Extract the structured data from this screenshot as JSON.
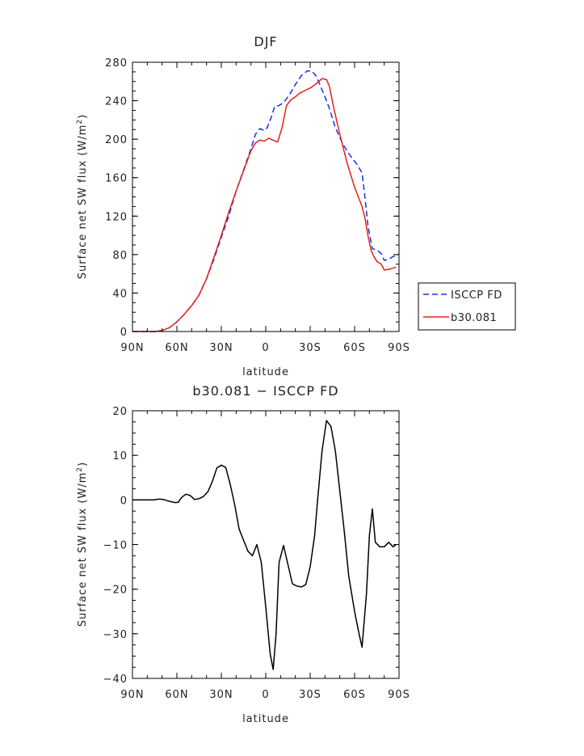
{
  "chart_data": [
    {
      "type": "line",
      "title": "DJF",
      "xlabel": "latitude",
      "ylabel": "Surface net SW flux (W/m²)",
      "ylabel_main": "Surface net SW flux (W/m",
      "ylabel_sup": "2",
      "ylabel_close": ")",
      "xlim": [
        -90,
        90
      ],
      "ylim": [
        0,
        280
      ],
      "x_ticks": [
        {
          "value": -90,
          "label": "90N"
        },
        {
          "value": -60,
          "label": "60N"
        },
        {
          "value": -30,
          "label": "30N"
        },
        {
          "value": 0,
          "label": "0"
        },
        {
          "value": 30,
          "label": "30S"
        },
        {
          "value": 60,
          "label": "60S"
        },
        {
          "value": 90,
          "label": "90S"
        }
      ],
      "y_ticks": [
        {
          "value": 0,
          "label": "0"
        },
        {
          "value": 40,
          "label": "40"
        },
        {
          "value": 80,
          "label": "80"
        },
        {
          "value": 120,
          "label": "120"
        },
        {
          "value": 160,
          "label": "160"
        },
        {
          "value": 200,
          "label": "200"
        },
        {
          "value": 240,
          "label": "240"
        },
        {
          "value": 280,
          "label": "280"
        }
      ],
      "legend_position": "outside-right",
      "series": [
        {
          "name": "ISCCP FD",
          "color": "#1a2ee6",
          "dash": "dashed",
          "points": [
            [
              -90,
              0
            ],
            [
              -80,
              0
            ],
            [
              -75,
              0
            ],
            [
              -70,
              1
            ],
            [
              -65,
              4
            ],
            [
              -60,
              10
            ],
            [
              -55,
              18
            ],
            [
              -50,
              27
            ],
            [
              -45,
              38
            ],
            [
              -40,
              55
            ],
            [
              -35,
              75
            ],
            [
              -30,
              98
            ],
            [
              -25,
              120
            ],
            [
              -20,
              146
            ],
            [
              -15,
              168
            ],
            [
              -10,
              190
            ],
            [
              -7,
              205
            ],
            [
              -4,
              211
            ],
            [
              -1,
              209
            ],
            [
              1,
              212
            ],
            [
              4,
              224
            ],
            [
              6,
              234
            ],
            [
              9,
              235
            ],
            [
              12,
              238
            ],
            [
              16,
              246
            ],
            [
              20,
              257
            ],
            [
              24,
              266
            ],
            [
              28,
              271
            ],
            [
              31,
              271
            ],
            [
              34,
              266
            ],
            [
              37,
              255
            ],
            [
              40,
              244
            ],
            [
              43,
              232
            ],
            [
              47,
              212
            ],
            [
              52,
              195
            ],
            [
              57,
              183
            ],
            [
              62,
              173
            ],
            [
              65,
              165
            ],
            [
              67,
              140
            ],
            [
              69,
              110
            ],
            [
              72,
              86
            ],
            [
              75,
              85
            ],
            [
              78,
              81
            ],
            [
              80,
              74
            ],
            [
              83,
              75
            ],
            [
              86,
              78
            ],
            [
              88,
              79
            ]
          ]
        },
        {
          "name": "b30.081",
          "color": "#e6201a",
          "dash": "solid",
          "points": [
            [
              -90,
              0
            ],
            [
              -80,
              0
            ],
            [
              -75,
              0
            ],
            [
              -70,
              1
            ],
            [
              -65,
              4
            ],
            [
              -60,
              10
            ],
            [
              -55,
              18
            ],
            [
              -50,
              27
            ],
            [
              -45,
              38
            ],
            [
              -40,
              55
            ],
            [
              -35,
              77
            ],
            [
              -30,
              100
            ],
            [
              -25,
              124
            ],
            [
              -20,
              146
            ],
            [
              -15,
              167
            ],
            [
              -10,
              188
            ],
            [
              -7,
              196
            ],
            [
              -4,
              199
            ],
            [
              -1,
              198
            ],
            [
              2,
              201
            ],
            [
              5,
              199
            ],
            [
              8,
              197
            ],
            [
              11,
              212
            ],
            [
              14,
              235
            ],
            [
              17,
              241
            ],
            [
              20,
              244
            ],
            [
              23,
              248
            ],
            [
              27,
              251
            ],
            [
              31,
              254
            ],
            [
              35,
              259
            ],
            [
              38,
              263
            ],
            [
              41,
              262
            ],
            [
              43,
              255
            ],
            [
              46,
              232
            ],
            [
              50,
              205
            ],
            [
              55,
              175
            ],
            [
              60,
              150
            ],
            [
              65,
              130
            ],
            [
              67,
              118
            ],
            [
              69,
              100
            ],
            [
              71,
              85
            ],
            [
              73,
              78
            ],
            [
              75,
              73
            ],
            [
              78,
              70
            ],
            [
              80,
              64
            ],
            [
              84,
              65
            ],
            [
              88,
              67
            ]
          ]
        }
      ]
    },
    {
      "type": "line",
      "title": "b30.081 − ISCCP FD",
      "xlabel": "latitude",
      "ylabel": "Surface net SW flux (W/m²)",
      "ylabel_main": "Surface net SW flux (W/m",
      "ylabel_sup": "2",
      "ylabel_close": ")",
      "xlim": [
        -90,
        90
      ],
      "ylim": [
        -40,
        20
      ],
      "x_ticks": [
        {
          "value": -90,
          "label": "90N"
        },
        {
          "value": -60,
          "label": "60N"
        },
        {
          "value": -30,
          "label": "30N"
        },
        {
          "value": 0,
          "label": "0"
        },
        {
          "value": 30,
          "label": "30S"
        },
        {
          "value": 60,
          "label": "60S"
        },
        {
          "value": 90,
          "label": "90S"
        }
      ],
      "y_ticks": [
        {
          "value": -40,
          "label": "−40"
        },
        {
          "value": -30,
          "label": "−30"
        },
        {
          "value": -20,
          "label": "−20"
        },
        {
          "value": -10,
          "label": "−10"
        },
        {
          "value": 0,
          "label": "0"
        },
        {
          "value": 10,
          "label": "10"
        },
        {
          "value": 20,
          "label": "20"
        }
      ],
      "series": [
        {
          "color": "#000000",
          "dash": "solid",
          "points": [
            [
              -90,
              0
            ],
            [
              -80,
              0
            ],
            [
              -76,
              0
            ],
            [
              -72,
              0.2
            ],
            [
              -69,
              0.1
            ],
            [
              -65,
              -0.3
            ],
            [
              -61,
              -0.6
            ],
            [
              -59,
              -0.5
            ],
            [
              -57,
              0.5
            ],
            [
              -54,
              1.3
            ],
            [
              -51,
              1.0
            ],
            [
              -48,
              0.1
            ],
            [
              -45,
              0.3
            ],
            [
              -42,
              0.8
            ],
            [
              -39,
              1.9
            ],
            [
              -36,
              4.2
            ],
            [
              -33,
              7.2
            ],
            [
              -30,
              7.8
            ],
            [
              -27,
              7.3
            ],
            [
              -24,
              3.5
            ],
            [
              -21,
              -1.0
            ],
            [
              -18,
              -6.5
            ],
            [
              -15,
              -9.0
            ],
            [
              -12,
              -11.5
            ],
            [
              -9,
              -12.5
            ],
            [
              -6,
              -10.0
            ],
            [
              -3,
              -14.0
            ],
            [
              0,
              -24.0
            ],
            [
              3,
              -34.5
            ],
            [
              5,
              -38.0
            ],
            [
              7,
              -30.0
            ],
            [
              9,
              -14.0
            ],
            [
              12,
              -10.2
            ],
            [
              15,
              -14.5
            ],
            [
              18,
              -18.8
            ],
            [
              21,
              -19.3
            ],
            [
              24,
              -19.5
            ],
            [
              27,
              -19.0
            ],
            [
              30,
              -15.0
            ],
            [
              33,
              -8.0
            ],
            [
              35,
              0
            ],
            [
              38,
              11.0
            ],
            [
              41,
              17.8
            ],
            [
              44,
              16.5
            ],
            [
              47,
              11.0
            ],
            [
              50,
              2.0
            ],
            [
              53,
              -7.0
            ],
            [
              56,
              -17.0
            ],
            [
              60,
              -25.0
            ],
            [
              63,
              -30.0
            ],
            [
              65,
              -33.0
            ],
            [
              68,
              -21.0
            ],
            [
              70,
              -8.0
            ],
            [
              72,
              -2.0
            ],
            [
              74,
              -9.5
            ],
            [
              77,
              -10.5
            ],
            [
              80,
              -10.5
            ],
            [
              83,
              -9.5
            ],
            [
              86,
              -10.5
            ],
            [
              88,
              -10.0
            ]
          ]
        }
      ]
    }
  ]
}
